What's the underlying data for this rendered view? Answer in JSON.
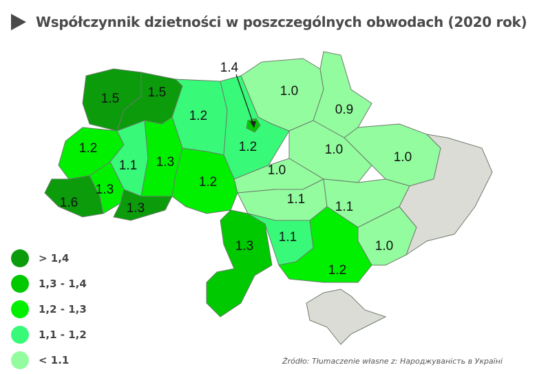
{
  "title": "Współczynnik dzietności w poszczególnych obwodach (2020 rok)",
  "source": "Źródło: Tłumaczenie własne z: Народжуваність в Україні",
  "colors": {
    "gt_1_4": "#0b9b0b",
    "c1_3_1_4": "#00c900",
    "c1_2_1_3": "#00f000",
    "c1_1_1_2": "#38fa78",
    "lt_1_1": "#93fc9f",
    "no_data": "#dcdcd6",
    "border": "#6b7b6b"
  },
  "legend": [
    {
      "label": "> 1,4",
      "color": "#0b9b0b"
    },
    {
      "label": "1,3 - 1,4",
      "color": "#00c900"
    },
    {
      "label": "1,2 - 1,3",
      "color": "#00f000"
    },
    {
      "label": "1,1 - 1,2",
      "color": "#38fa78"
    },
    {
      "label": "< 1.1",
      "color": "#93fc9f"
    }
  ],
  "regions": [
    {
      "value": "1.5",
      "color": "#0b9b0b"
    },
    {
      "value": "1.5",
      "color": "#0b9b0b"
    },
    {
      "value": "1.2",
      "color": "#38fa78"
    },
    {
      "value": "1.2",
      "color": "#38fa78"
    },
    {
      "value": "1.0",
      "color": "#93fc9f"
    },
    {
      "value": "0.9",
      "color": "#93fc9f"
    },
    {
      "value": "1.0",
      "color": "#93fc9f"
    },
    {
      "value": "1.0",
      "color": "#93fc9f"
    },
    {
      "value": "1.0",
      "color": "#93fc9f"
    },
    {
      "value": "1.2",
      "color": "#00f000"
    },
    {
      "value": "1.1",
      "color": "#38fa78"
    },
    {
      "value": "1.3",
      "color": "#00f000"
    },
    {
      "value": "1.2",
      "color": "#00f000"
    },
    {
      "value": "1.6",
      "color": "#0b9b0b"
    },
    {
      "value": "1.3",
      "color": "#00f000"
    },
    {
      "value": "1.3",
      "color": "#0b9b0b"
    },
    {
      "value": "1.1",
      "color": "#93fc9f"
    },
    {
      "value": "1.1",
      "color": "#93fc9f"
    },
    {
      "value": "1.3",
      "color": "#00c900"
    },
    {
      "value": "1.1",
      "color": "#38fa78"
    },
    {
      "value": "1.0",
      "color": "#93fc9f"
    },
    {
      "value": "1.2",
      "color": "#00f000"
    },
    {
      "value": "",
      "color": "#dcdcd6"
    },
    {
      "value": "",
      "color": "#dcdcd6"
    }
  ],
  "kyiv_city": {
    "value": "1.4",
    "color": "#00c900"
  }
}
